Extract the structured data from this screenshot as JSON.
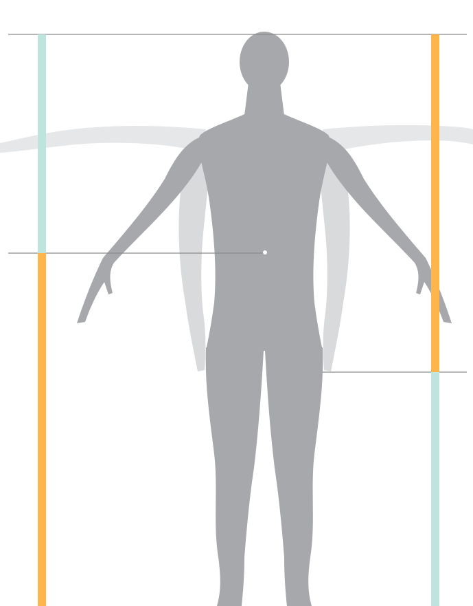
{
  "colors": {
    "background": "#ffffff",
    "figure": "#a7a8ab",
    "figure_ghost": "#d9dadc",
    "figure_ghost_far": "#e6e7e8",
    "guide_line": "#8a8a8a",
    "bar_orange": "#fdb54c",
    "bar_teal": "#bfe4de",
    "navel_dot": "#ffffff"
  },
  "icons": {
    "figure": "human-figure-front-silhouette",
    "ghost_raised": "raised-arms-ghost",
    "ghost_lowered": "lowered-arms-ghost"
  },
  "measure_bars": {
    "left": {
      "upper_segment": "teal",
      "lower_segment": "orange"
    },
    "right": {
      "upper_segment": "orange",
      "lower_segment": "teal"
    }
  }
}
